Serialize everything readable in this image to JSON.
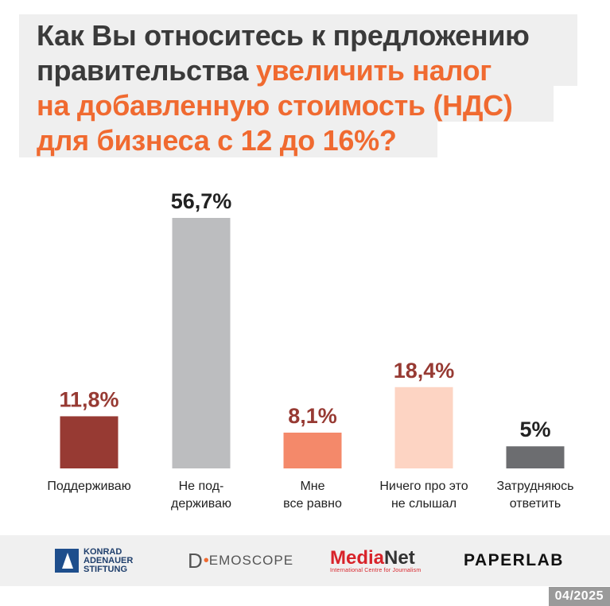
{
  "title": {
    "line1": "Как Вы относитесь к предложению",
    "line2_dark": "правительства ",
    "line2_accent": "увеличить налог",
    "line3": "на добавленную стоимость (НДС)",
    "line4": "для бизнеса с 12 до 16%?"
  },
  "colors": {
    "title_dark": "#3a3a3a",
    "title_accent": "#f06a30",
    "title_background": "#efefef"
  },
  "chart_data": {
    "type": "bar",
    "categories": [
      [
        "Поддерживаю"
      ],
      [
        "Не под-",
        "держиваю"
      ],
      [
        "Мне",
        "все равно"
      ],
      [
        "Ничего про это",
        "не слышал"
      ],
      [
        "Затрудняюсь",
        "ответить"
      ]
    ],
    "values": [
      11.8,
      56.7,
      8.1,
      18.4,
      5
    ],
    "value_labels": [
      "11,8%",
      "56,7%",
      "8,1%",
      "18,4%",
      "5%"
    ],
    "bar_colors": [
      "#973a33",
      "#bcbdbf",
      "#f4896a",
      "#fdd4c3",
      "#6c6d70"
    ],
    "label_colors": [
      "#973a33",
      "#222222",
      "#973a33",
      "#973a33",
      "#222222"
    ],
    "ylim": [
      0,
      56.7
    ],
    "grid": false,
    "legend": "none"
  },
  "footer": {
    "kas": [
      "KONRAD",
      "ADENAUER",
      "STIFTUNG"
    ],
    "demoscope": "EMOSCOPE",
    "demoscope_initial": "D",
    "medianet_media": "Media",
    "medianet_net": "Net",
    "medianet_sub": "International Centre for Journalism",
    "paperlab": "PAPERLAB",
    "date": "04/2025"
  }
}
